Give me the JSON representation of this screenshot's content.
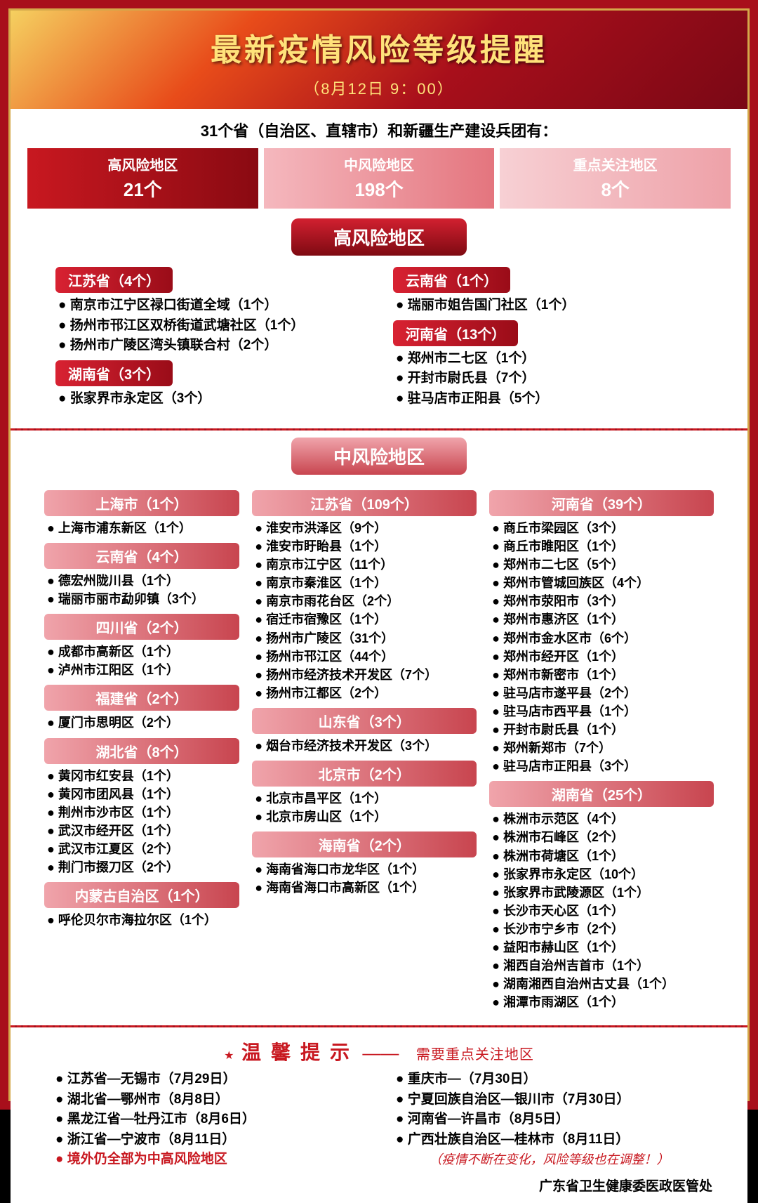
{
  "colors": {
    "outer_bg": "#a80f1b",
    "border": "#d4a84a",
    "title_text": "#ffe27a",
    "accent_red": "#c81820",
    "dark_red": "#7e0a12"
  },
  "header": {
    "title": "最新疫情风险等级提醒",
    "time": "（8月12日 9：00）"
  },
  "subheader": "31个省（自治区、直辖市）和新疆生产建设兵团有：",
  "summary": {
    "high": {
      "label": "高风险地区",
      "count": "21个"
    },
    "mid": {
      "label": "中风险地区",
      "count": "198个"
    },
    "key": {
      "label": "重点关注地区",
      "count": "8个"
    }
  },
  "high_risk": {
    "title": "高风险地区",
    "left": [
      {
        "prov": "江苏省（4个）",
        "items": [
          "南京市江宁区禄口街道全域（1个）",
          "扬州市邗江区双桥街道武塘社区（1个）",
          "扬州市广陵区湾头镇联合村（2个）"
        ]
      },
      {
        "prov": "湖南省（3个）",
        "items": [
          "张家界市永定区（3个）"
        ]
      }
    ],
    "right": [
      {
        "prov": "云南省（1个）",
        "items": [
          "瑞丽市姐告国门社区（1个）"
        ]
      },
      {
        "prov": "河南省（13个）",
        "items": [
          "郑州市二七区（1个）",
          "开封市尉氏县（7个）",
          "驻马店市正阳县（5个）"
        ]
      }
    ]
  },
  "mid_risk": {
    "title": "中风险地区",
    "col1": [
      {
        "prov": "上海市（1个）",
        "items": [
          "上海市浦东新区（1个）"
        ]
      },
      {
        "prov": "云南省（4个）",
        "items": [
          "德宏州陇川县（1个）",
          "瑞丽市丽市勐卯镇（3个）"
        ]
      },
      {
        "prov": "四川省（2个）",
        "items": [
          "成都市高新区（1个）",
          "泸州市江阳区（1个）"
        ]
      },
      {
        "prov": "福建省（2个）",
        "items": [
          "厦门市思明区（2个）"
        ]
      },
      {
        "prov": "湖北省（8个）",
        "items": [
          "黄冈市红安县（1个）",
          "黄冈市团风县（1个）",
          "荆州市沙市区（1个）",
          "武汉市经开区（1个）",
          "武汉市江夏区（2个）",
          "荆门市掇刀区（2个）"
        ]
      },
      {
        "prov": "内蒙古自治区（1个）",
        "items": [
          "呼伦贝尔市海拉尔区（1个）"
        ]
      }
    ],
    "col2": [
      {
        "prov": "江苏省（109个）",
        "items": [
          "淮安市洪泽区（9个）",
          "淮安市盱眙县（1个）",
          "南京市江宁区（11个）",
          "南京市秦淮区（1个）",
          "南京市雨花台区（2个）",
          "宿迁市宿豫区（1个）",
          "扬州市广陵区（31个）",
          "扬州市邗江区（44个）",
          "扬州市经济技术开发区（7个）",
          "扬州市江都区（2个）"
        ]
      },
      {
        "prov": "山东省（3个）",
        "items": [
          "烟台市经济技术开发区（3个）"
        ]
      },
      {
        "prov": "北京市（2个）",
        "items": [
          "北京市昌平区（1个）",
          "北京市房山区（1个）"
        ]
      },
      {
        "prov": "海南省（2个）",
        "items": [
          "海南省海口市龙华区（1个）",
          "海南省海口市高新区（1个）"
        ]
      }
    ],
    "col3": [
      {
        "prov": "河南省（39个）",
        "items": [
          "商丘市梁园区（3个）",
          "商丘市睢阳区（1个）",
          "郑州市二七区（5个）",
          "郑州市管城回族区（4个）",
          "郑州市荥阳市（3个）",
          "郑州市惠济区（1个）",
          "郑州市金水区市（6个）",
          "郑州市经开区（1个）",
          "郑州市新密市（1个）",
          "驻马店市遂平县（2个）",
          "驻马店市西平县（1个）",
          "开封市尉氏县（1个）",
          "郑州新郑市（7个）",
          "驻马店市正阳县（3个）"
        ]
      },
      {
        "prov": "湖南省（25个）",
        "items": [
          "株洲市示范区（4个）",
          "株洲市石峰区（2个）",
          "株洲市荷塘区（1个）",
          "张家界市永定区（10个）",
          "张家界市武陵源区（1个）",
          "长沙市天心区（1个）",
          "长沙市宁乡市（2个）",
          "益阳市赫山区（1个）",
          "湘西自治州吉首市（1个）",
          "湖南湘西自治州古丈县（1个）",
          "湘潭市雨湖区（1个）"
        ]
      }
    ]
  },
  "reminder": {
    "title": "温馨提示",
    "sub": "需要重点关注地区",
    "left": [
      {
        "text": "江苏省—无锡市（7月29日）",
        "red": false
      },
      {
        "text": "湖北省—鄂州市（8月8日）",
        "red": false
      },
      {
        "text": "黑龙江省—牡丹江市（8月6日）",
        "red": false
      },
      {
        "text": "浙江省—宁波市（8月11日）",
        "red": false
      },
      {
        "text": "境外仍全部为中高风险地区",
        "red": true
      }
    ],
    "right": [
      {
        "text": "重庆市—（7月30日）",
        "red": false
      },
      {
        "text": "宁夏回族自治区—银川市（7月30日）",
        "red": false
      },
      {
        "text": "河南省—许昌市（8月5日）",
        "red": false
      },
      {
        "text": "广西壮族自治区—桂林市（8月11日）",
        "red": false
      }
    ],
    "note": "（疫情不断在变化，风险等级也在调整！）"
  },
  "source": "广东省卫生健康委医政医管处"
}
